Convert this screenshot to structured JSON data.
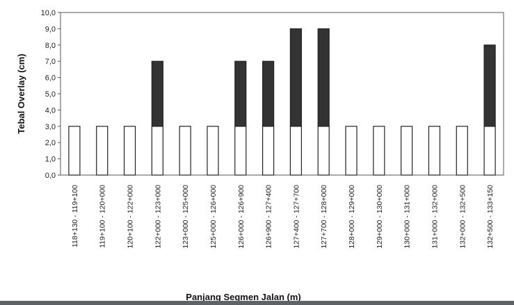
{
  "chart_data": {
    "type": "bar",
    "stacked": true,
    "title": "",
    "xlabel": "Panjang Segmen Jalan (m)",
    "ylabel": "Tebal Overlay (cm)",
    "ylim": [
      0,
      10
    ],
    "yticks": [
      "0,0",
      "1,0",
      "2,0",
      "3,0",
      "4,0",
      "5,0",
      "6,0",
      "7,0",
      "8,0",
      "9,0",
      "10,0"
    ],
    "grid": false,
    "categories": [
      "118+130 - 119+100",
      "119+100 - 120+000",
      "120+100 - 122+000",
      "122+000 - 123+000",
      "123+000 - 125+000",
      "125+000 - 126+000",
      "126+000 - 126+900",
      "126+900 - 127+400",
      "127+400 - 127+700",
      "127+700 - 128+000",
      "128+000 - 129+000",
      "129+000 - 130+000",
      "130+000 - 131+000",
      "131+000 - 132+000",
      "132+000 - 132+500",
      "132+500 - 133+150"
    ],
    "series": [
      {
        "values": [
          3,
          3,
          3,
          3,
          3,
          3,
          3,
          3,
          3,
          3,
          3,
          3,
          3,
          3,
          3,
          3
        ],
        "color": "#ffffff"
      },
      {
        "values": [
          0,
          0,
          0,
          4,
          0,
          0,
          4,
          4,
          6,
          6,
          0,
          0,
          0,
          0,
          0,
          5
        ],
        "color": "#333333"
      }
    ]
  }
}
